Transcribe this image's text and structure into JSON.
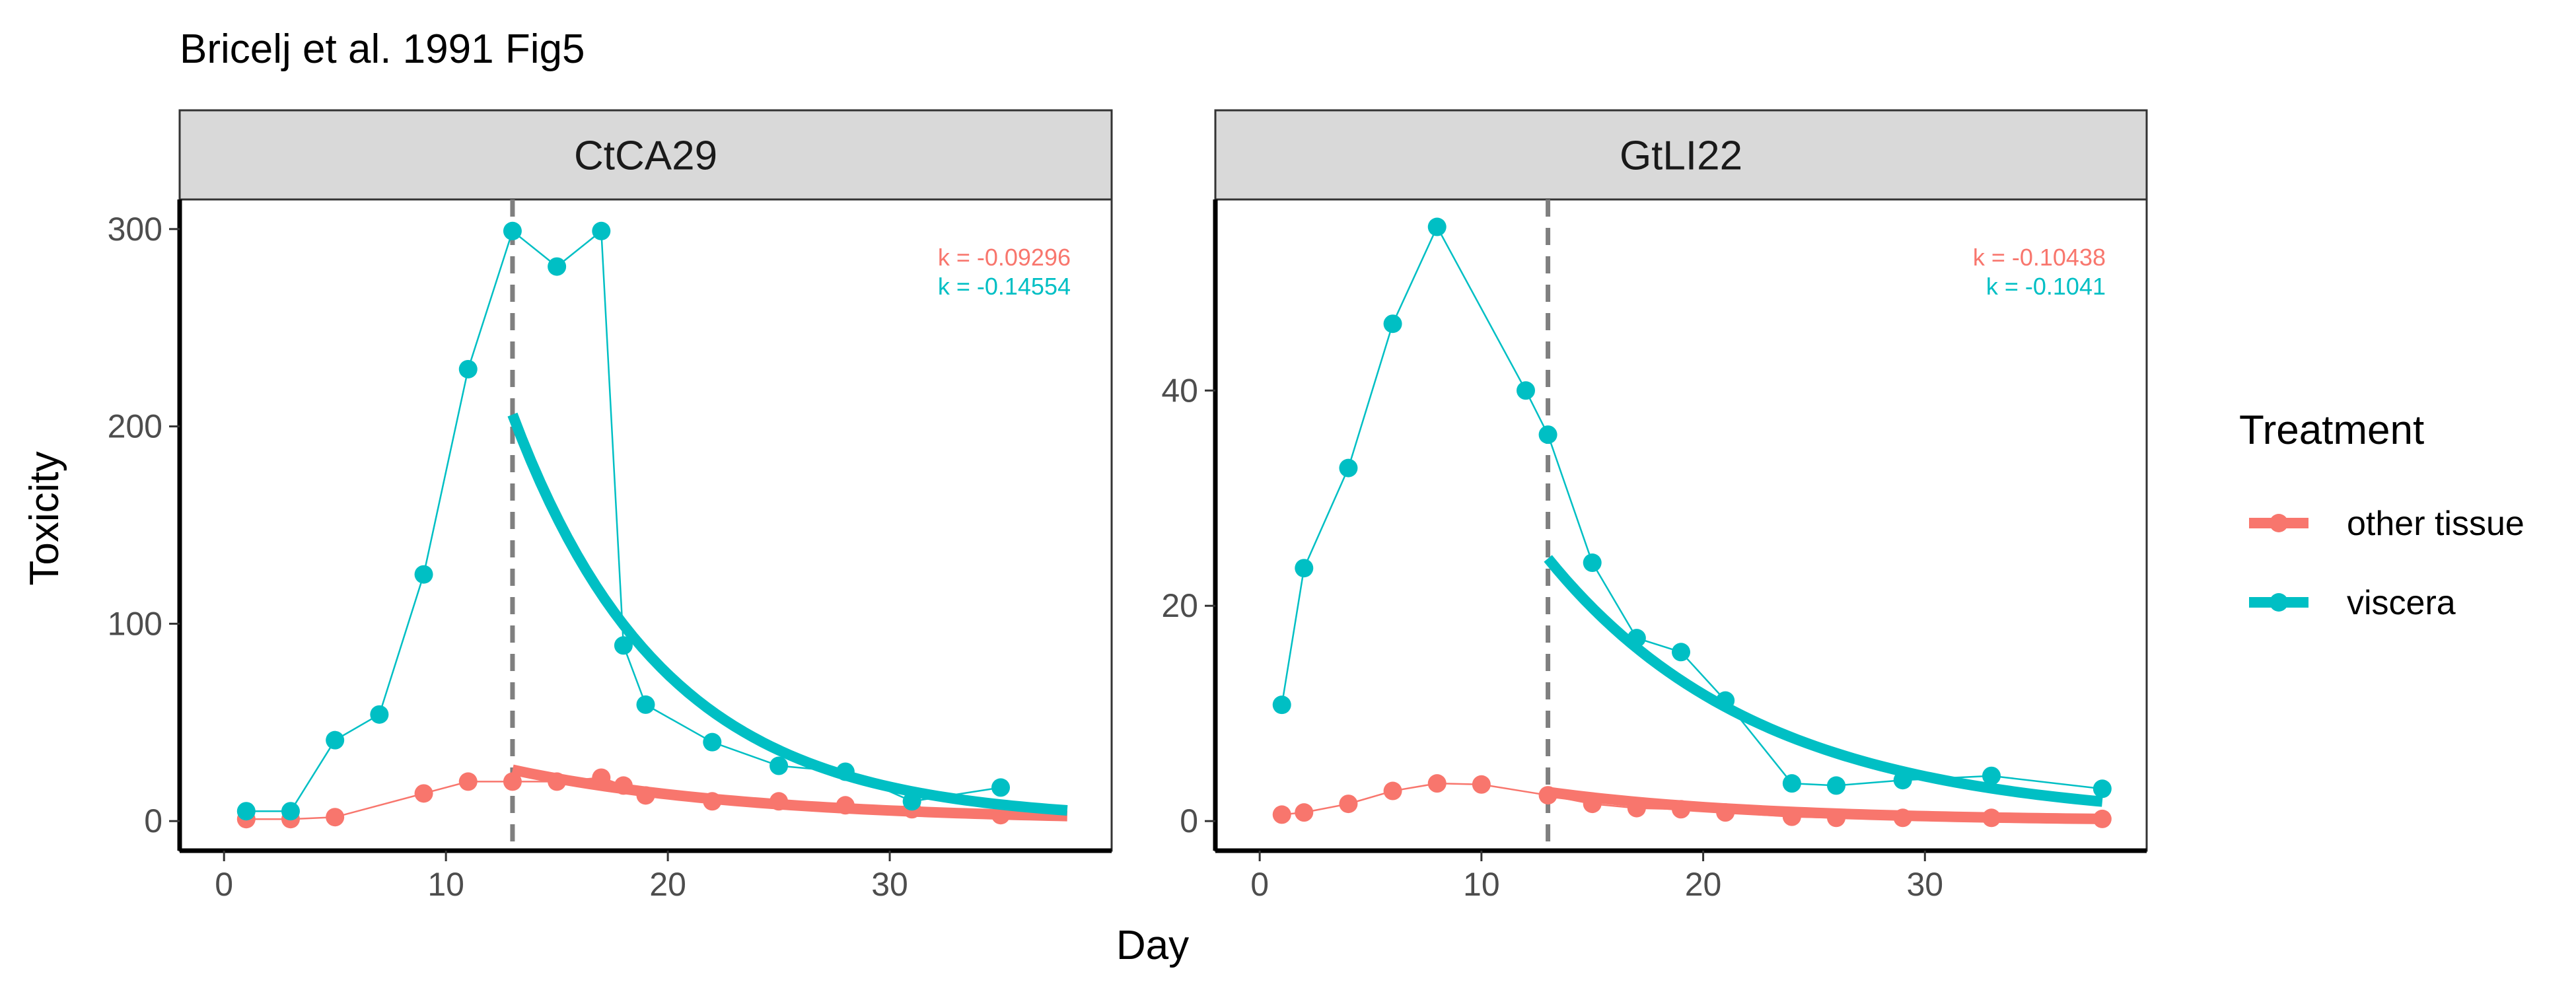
{
  "title": "Bricelj et al. 1991 Fig5",
  "legend": {
    "title": "Treatment",
    "position": "right",
    "entries": [
      {
        "label": "other tissue",
        "color": "#F8766D"
      },
      {
        "label": "viscera",
        "color": "#00BFC4"
      }
    ]
  },
  "colors": {
    "other_tissue": "#F8766D",
    "viscera": "#00BFC4",
    "strip_fill": "#D9D9D9",
    "vline": "#7F7F7F"
  },
  "chart_data": [
    {
      "type": "line",
      "panel": "CtCA29",
      "xlabel": "Day",
      "ylabel": "Toxicity",
      "xlim": [
        -2,
        40
      ],
      "ylim": [
        -15,
        315
      ],
      "x_ticks": [
        0,
        10,
        20,
        30
      ],
      "y_ticks": [
        0,
        100,
        200,
        300
      ],
      "vline_x": 13,
      "grid": false,
      "series": [
        {
          "name": "other tissue",
          "x": [
            1,
            3,
            5,
            9,
            11,
            13,
            15,
            17,
            18,
            19,
            22,
            25,
            28,
            31,
            35
          ],
          "y": [
            1,
            1,
            2,
            14,
            20,
            20,
            20,
            22,
            18,
            13,
            10,
            10,
            8,
            6,
            3
          ],
          "fit": {
            "x_start": 13,
            "x_end": 38,
            "y_start": 26,
            "k": -0.09296
          },
          "k_label": "k = -0.09296"
        },
        {
          "name": "viscera",
          "x": [
            1,
            3,
            5,
            7,
            9,
            11,
            13,
            15,
            17,
            18,
            19,
            22,
            25,
            28,
            31,
            35
          ],
          "y": [
            5,
            5,
            41,
            54,
            125,
            229,
            299,
            281,
            299,
            89,
            59,
            40,
            28,
            25,
            10,
            17
          ],
          "fit": {
            "x_start": 13,
            "x_end": 38,
            "y_start": 206,
            "k": -0.14554
          },
          "k_label": "k = -0.14554"
        }
      ]
    },
    {
      "type": "line",
      "panel": "GtLI22",
      "xlabel": "Day",
      "ylabel": "Toxicity",
      "xlim": [
        -2,
        40
      ],
      "ylim": [
        -2.75,
        57.75
      ],
      "x_ticks": [
        0,
        10,
        20,
        30
      ],
      "y_ticks": [
        0,
        20,
        40
      ],
      "vline_x": 13,
      "grid": false,
      "series": [
        {
          "name": "other tissue",
          "x": [
            1,
            2,
            4,
            6,
            8,
            10,
            13,
            15,
            17,
            19,
            21,
            24,
            26,
            29,
            33,
            38
          ],
          "y": [
            0.6,
            0.8,
            1.6,
            2.8,
            3.5,
            3.4,
            2.4,
            1.6,
            1.2,
            1.1,
            0.8,
            0.4,
            0.3,
            0.3,
            0.3,
            0.2
          ],
          "fit": {
            "x_start": 13,
            "x_end": 38,
            "y_start": 2.7,
            "k": -0.10438
          },
          "k_label": "k = -0.10438"
        },
        {
          "name": "viscera",
          "x": [
            1,
            2,
            4,
            6,
            8,
            12,
            13,
            15,
            17,
            19,
            21,
            24,
            26,
            29,
            33,
            38
          ],
          "y": [
            10.8,
            23.5,
            32.8,
            46.2,
            55.2,
            40,
            35.9,
            24,
            17,
            15.7,
            11.2,
            3.5,
            3.3,
            3.8,
            4.2,
            3
          ],
          "fit": {
            "x_start": 13,
            "x_end": 38,
            "y_start": 24.4,
            "k": -0.1041
          },
          "k_label": "k = -0.1041"
        }
      ]
    }
  ]
}
